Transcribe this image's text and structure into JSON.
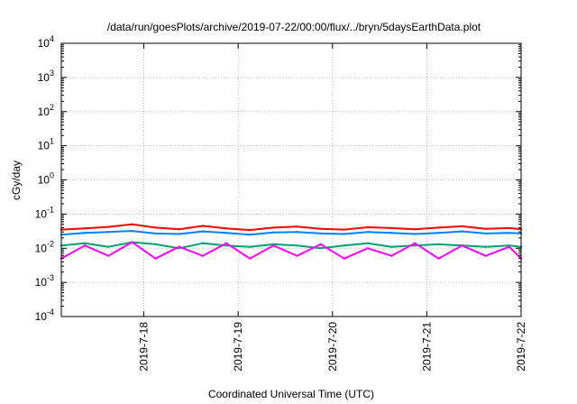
{
  "chart_data": {
    "type": "line",
    "title": "/data/run/goesPlots/archive/2019-07-22/00:00/flux/../bryn/5daysEarthData.plot",
    "xlabel": "Coordinated Universal Time (UTC)",
    "ylabel": "cGy/day",
    "y_scale": "log",
    "ylim": [
      0.0001,
      10000
    ],
    "y_ticks": [
      {
        "value": 0.0001,
        "base": "10",
        "exp": "-4"
      },
      {
        "value": 0.001,
        "base": "10",
        "exp": "-3"
      },
      {
        "value": 0.01,
        "base": "10",
        "exp": "-2"
      },
      {
        "value": 0.1,
        "base": "10",
        "exp": "-1"
      },
      {
        "value": 1,
        "base": "10",
        "exp": "0"
      },
      {
        "value": 10,
        "base": "10",
        "exp": "1"
      },
      {
        "value": 100,
        "base": "10",
        "exp": "2"
      },
      {
        "value": 1000,
        "base": "10",
        "exp": "3"
      },
      {
        "value": 10000,
        "base": "10",
        "exp": "4"
      }
    ],
    "x_range": [
      "2019-07-17 03:00",
      "2019-07-22 00:00"
    ],
    "x_ticks": [
      {
        "value": "2019-07-18 00:00",
        "label": "2019-7-18"
      },
      {
        "value": "2019-07-19 00:00",
        "label": "2019-7-19"
      },
      {
        "value": "2019-07-20 00:00",
        "label": "2019-7-20"
      },
      {
        "value": "2019-07-21 00:00",
        "label": "2019-7-21"
      },
      {
        "value": "2019-07-22 00:00",
        "label": "2019-7-22"
      }
    ],
    "grid": true,
    "legend": "none",
    "series": [
      {
        "color": "#ff0000",
        "x": [
          "2019-07-17 03:00",
          "2019-07-17 09:00",
          "2019-07-17 15:00",
          "2019-07-17 21:00",
          "2019-07-18 03:00",
          "2019-07-18 09:00",
          "2019-07-18 15:00",
          "2019-07-18 21:00",
          "2019-07-19 03:00",
          "2019-07-19 09:00",
          "2019-07-19 15:00",
          "2019-07-19 21:00",
          "2019-07-20 03:00",
          "2019-07-20 09:00",
          "2019-07-20 15:00",
          "2019-07-20 21:00",
          "2019-07-21 03:00",
          "2019-07-21 09:00",
          "2019-07-21 15:00",
          "2019-07-21 21:00",
          "2019-07-22 00:00"
        ],
        "y": [
          0.035,
          0.038,
          0.042,
          0.05,
          0.04,
          0.036,
          0.045,
          0.038,
          0.034,
          0.04,
          0.043,
          0.037,
          0.035,
          0.041,
          0.039,
          0.036,
          0.04,
          0.044,
          0.037,
          0.039,
          0.036
        ]
      },
      {
        "color": "#0080ff",
        "x": [
          "2019-07-17 03:00",
          "2019-07-17 09:00",
          "2019-07-17 15:00",
          "2019-07-17 21:00",
          "2019-07-18 03:00",
          "2019-07-18 09:00",
          "2019-07-18 15:00",
          "2019-07-18 21:00",
          "2019-07-19 03:00",
          "2019-07-19 09:00",
          "2019-07-19 15:00",
          "2019-07-19 21:00",
          "2019-07-20 03:00",
          "2019-07-20 09:00",
          "2019-07-20 15:00",
          "2019-07-20 21:00",
          "2019-07-21 03:00",
          "2019-07-21 09:00",
          "2019-07-21 15:00",
          "2019-07-21 21:00",
          "2019-07-22 00:00"
        ],
        "y": [
          0.025,
          0.028,
          0.03,
          0.032,
          0.027,
          0.026,
          0.031,
          0.028,
          0.025,
          0.029,
          0.03,
          0.027,
          0.026,
          0.03,
          0.028,
          0.026,
          0.028,
          0.031,
          0.027,
          0.028,
          0.027
        ]
      },
      {
        "color": "#00a070",
        "x": [
          "2019-07-17 03:00",
          "2019-07-17 09:00",
          "2019-07-17 15:00",
          "2019-07-17 21:00",
          "2019-07-18 03:00",
          "2019-07-18 09:00",
          "2019-07-18 15:00",
          "2019-07-18 21:00",
          "2019-07-19 03:00",
          "2019-07-19 09:00",
          "2019-07-19 15:00",
          "2019-07-19 21:00",
          "2019-07-20 03:00",
          "2019-07-20 09:00",
          "2019-07-20 15:00",
          "2019-07-20 21:00",
          "2019-07-21 03:00",
          "2019-07-21 09:00",
          "2019-07-21 15:00",
          "2019-07-21 21:00",
          "2019-07-22 00:00"
        ],
        "y": [
          0.012,
          0.014,
          0.011,
          0.015,
          0.013,
          0.01,
          0.014,
          0.012,
          0.011,
          0.013,
          0.012,
          0.01,
          0.012,
          0.014,
          0.011,
          0.012,
          0.013,
          0.012,
          0.011,
          0.012,
          0.011
        ]
      },
      {
        "color": "#ff00ff",
        "x": [
          "2019-07-17 03:00",
          "2019-07-17 09:00",
          "2019-07-17 15:00",
          "2019-07-17 21:00",
          "2019-07-18 03:00",
          "2019-07-18 09:00",
          "2019-07-18 15:00",
          "2019-07-18 21:00",
          "2019-07-19 03:00",
          "2019-07-19 09:00",
          "2019-07-19 15:00",
          "2019-07-19 21:00",
          "2019-07-20 03:00",
          "2019-07-20 09:00",
          "2019-07-20 15:00",
          "2019-07-20 21:00",
          "2019-07-21 03:00",
          "2019-07-21 09:00",
          "2019-07-21 15:00",
          "2019-07-21 21:00",
          "2019-07-22 00:00"
        ],
        "y": [
          0.005,
          0.012,
          0.006,
          0.015,
          0.005,
          0.011,
          0.006,
          0.014,
          0.005,
          0.012,
          0.006,
          0.013,
          0.005,
          0.01,
          0.006,
          0.014,
          0.005,
          0.012,
          0.006,
          0.011,
          0.005
        ]
      }
    ]
  }
}
